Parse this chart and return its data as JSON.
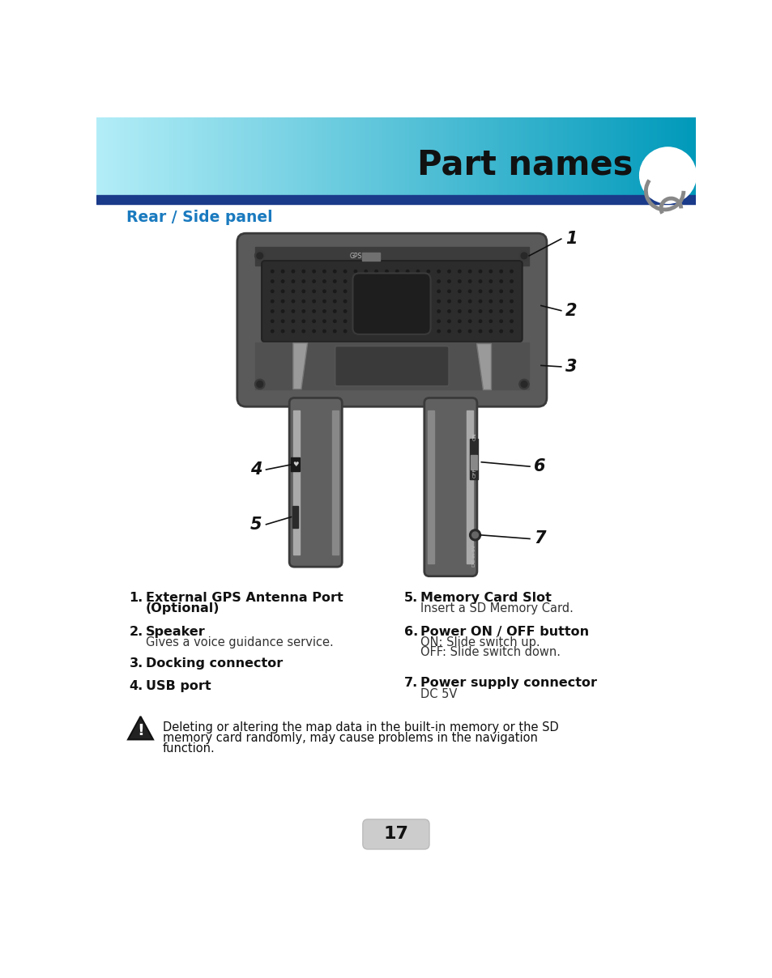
{
  "title": "Part names",
  "section_title": "Rear / Side panel",
  "section_title_color": "#1a7abf",
  "header_bar_color": "#1a3a8a",
  "bg_color": "#ffffff",
  "line_color": "#111111",
  "device_body_color": "#606060",
  "device_dark_color": "#333333",
  "device_silver_color": "#aaaaaa",
  "device_edge_color": "#404040",
  "items_left": [
    {
      "num": "1.",
      "bold": "External GPS Antenna Port\n(Optional)",
      "normal": ""
    },
    {
      "num": "2.",
      "bold": "Speaker",
      "normal": "Gives a voice guidance service."
    },
    {
      "num": "3.",
      "bold": "Docking connector",
      "normal": ""
    },
    {
      "num": "4.",
      "bold": "USB port",
      "normal": ""
    }
  ],
  "items_right": [
    {
      "num": "5.",
      "bold": "Memory Card Slot",
      "normal": "Insert a SD Memory Card."
    },
    {
      "num": "6.",
      "bold": "Power ON / OFF button",
      "normal": "ON: Slide switch up.\nOFF: Slide switch down."
    },
    {
      "num": "7.",
      "bold": "Power supply connector",
      "normal": "DC 5V"
    }
  ],
  "warning_text": "Deleting or altering the map data in the built-in memory or the SD\nmemory card randomly, may cause problems in the navigation\nfunction.",
  "page_number": "17"
}
